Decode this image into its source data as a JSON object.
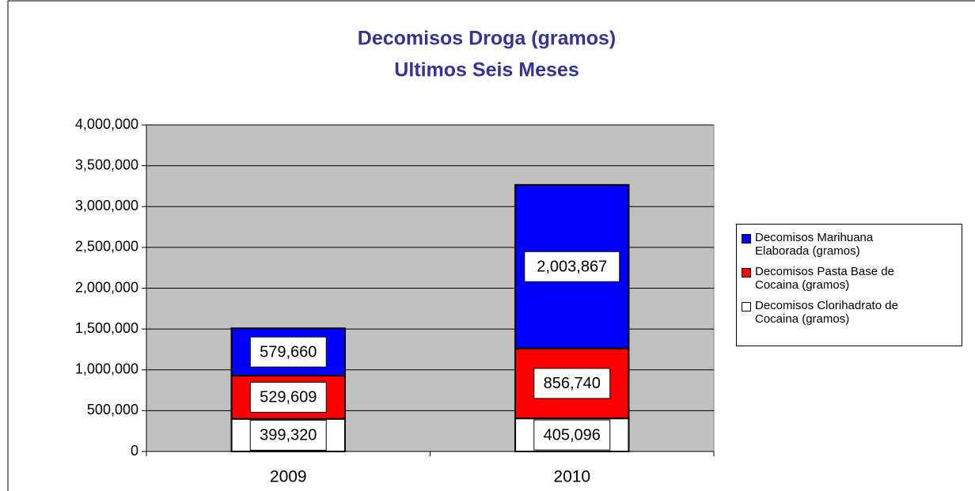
{
  "chart_data": {
    "type": "stacked_bar",
    "title": "Decomisos Droga (gramos)",
    "subtitle": "Ultimos Seis Meses",
    "categories": [
      "2009",
      "2010"
    ],
    "series": [
      {
        "name": "Decomisos Clorihadrato de Cocaina (gramos)",
        "color": "#ffffff",
        "values": [
          399320,
          405096
        ],
        "value_labels": [
          "399,320",
          "405,096"
        ]
      },
      {
        "name": "Decomisos Pasta Base de Cocaina (gramos)",
        "color": "#ff0000",
        "values": [
          529609,
          856740
        ],
        "value_labels": [
          "529,609",
          "856,740"
        ]
      },
      {
        "name": "Decomisos Marihuana Elaborada (gramos)",
        "color": "#0000ff",
        "values": [
          579660,
          2003867
        ],
        "value_labels": [
          "579,660",
          "2,003,867"
        ]
      }
    ],
    "ylim": [
      0,
      4000000
    ],
    "yticks": [
      0,
      {
        "value": 500000,
        "label": "500,000"
      },
      {
        "value": 1000000,
        "label": "1,000,000"
      },
      {
        "value": 1500000,
        "label": "1,500,000"
      },
      {
        "value": 2000000,
        "label": "2,000,000"
      },
      {
        "value": 2500000,
        "label": "2,500,000"
      },
      {
        "value": 3000000,
        "label": "3,000,000"
      },
      {
        "value": 3500000,
        "label": "3,500,000"
      },
      {
        "value": 4000000,
        "label": "4,000,000"
      }
    ],
    "grid": true,
    "plot_background": "#c0c0c0",
    "legend": "right"
  }
}
